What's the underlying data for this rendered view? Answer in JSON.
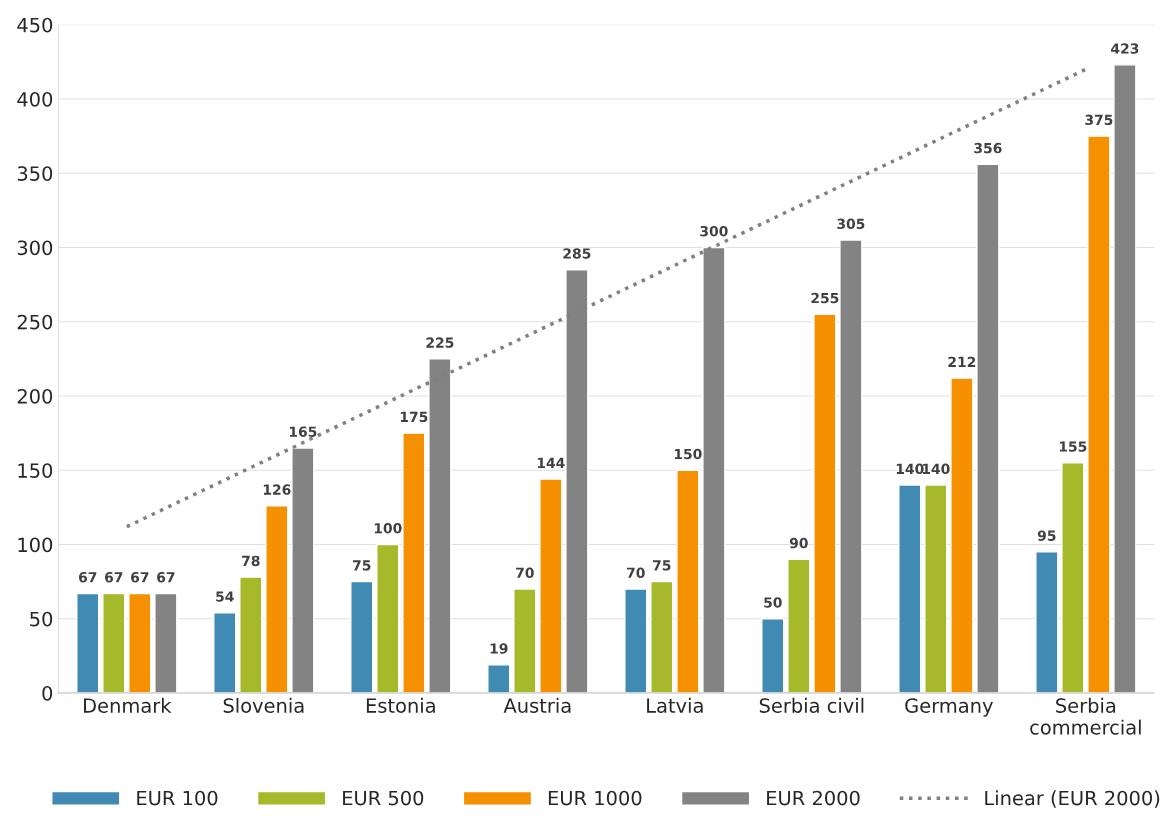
{
  "chart_data": {
    "type": "bar",
    "categories": [
      "Denmark",
      "Slovenia",
      "Estonia",
      "Austria",
      "Latvia",
      "Serbia civil",
      "Germany",
      "Serbia\ncommercial"
    ],
    "series": [
      {
        "name": "EUR 100",
        "color": "#418ab3",
        "values": [
          67,
          54,
          75,
          19,
          70,
          50,
          140,
          95
        ],
        "value_labels": [
          "67",
          "54",
          "75",
          "19",
          "70",
          "50",
          "140",
          "95"
        ]
      },
      {
        "name": "EUR 500",
        "color": "#a5b92b",
        "values": [
          67,
          78,
          100,
          70,
          75,
          90,
          140,
          155
        ],
        "value_labels": [
          "67",
          "78",
          "100",
          "70",
          "75",
          "90",
          "140",
          "155"
        ]
      },
      {
        "name": "EUR 1000",
        "color": "#f59100",
        "values": [
          67,
          126,
          175,
          144,
          150,
          255,
          212,
          375
        ],
        "value_labels": [
          "67",
          "126",
          "175",
          "144",
          "150",
          "255",
          "212",
          "375"
        ]
      },
      {
        "name": "EUR 2000",
        "color": "#838383",
        "values": [
          67,
          165,
          225,
          285,
          300,
          305,
          356,
          423
        ],
        "value_labels": [
          "67",
          "165",
          "225",
          "285",
          "300",
          "305",
          "356",
          "423"
        ]
      },
      {
        "name": "Linear (EUR 2000)",
        "type": "line",
        "color": "#808080",
        "line_style": "dotted",
        "values": [
          112,
          156,
          200,
          244,
          288,
          332,
          376,
          420
        ]
      }
    ],
    "ylim": [
      0,
      450
    ],
    "yticks": [
      0,
      50,
      100,
      150,
      200,
      250,
      300,
      350,
      400,
      450
    ],
    "grid": "y",
    "legend": "bottom"
  }
}
